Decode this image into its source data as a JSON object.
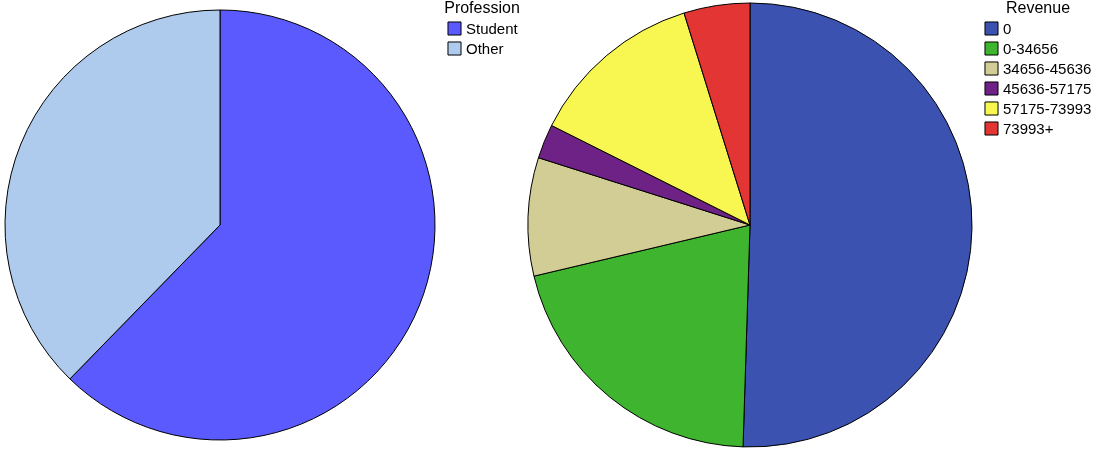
{
  "chart_data": [
    {
      "type": "pie",
      "legend_title": "Profession",
      "categories": [
        "Student",
        "Other"
      ],
      "values": [
        62.3,
        37.7
      ],
      "colors": [
        "#5a5aff",
        "#aecbee"
      ],
      "legend": "top right"
    },
    {
      "type": "pie",
      "legend_title": "Revenue",
      "categories": [
        "0",
        "0-34656",
        "34656-45636",
        "45636-57175",
        "57175-73993",
        "73993+"
      ],
      "values": [
        50.5,
        20.8,
        8.6,
        2.5,
        12.8,
        4.8
      ],
      "colors": [
        "#3c52b0",
        "#3fb42f",
        "#d2cd94",
        "#6e2286",
        "#f8f651",
        "#e33634"
      ],
      "legend": "top right"
    }
  ]
}
